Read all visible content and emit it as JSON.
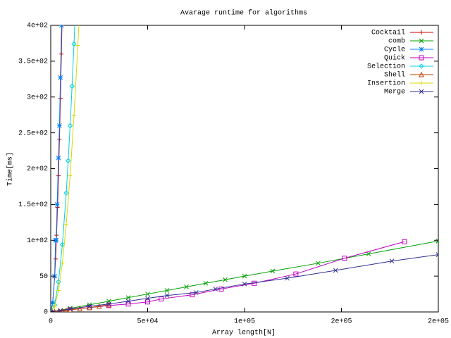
{
  "chart_data": {
    "type": "line",
    "title": "Avarage runtime for algorithms",
    "x_label": "Array length[N]",
    "y_label": "Time[ms]",
    "xlim": [
      0,
      200000
    ],
    "ylim": [
      0,
      400
    ],
    "xticks": [
      0,
      {
        "value": 50000,
        "label": "5e+04"
      },
      {
        "value": 100000,
        "label": "1e+05"
      },
      {
        "value": 150000,
        "label": "2e+05"
      },
      {
        "value": 200000,
        "label": "2e+05"
      }
    ],
    "yticks": [
      0,
      50,
      {
        "value": 100,
        "label": "1e+02"
      },
      {
        "value": 150,
        "label": "1.5e+02"
      },
      {
        "value": 200,
        "label": "2e+02"
      },
      {
        "value": 250,
        "label": "2.5e+02"
      },
      {
        "value": 300,
        "label": "3e+02"
      },
      {
        "value": 350,
        "label": "3.5e+02"
      },
      {
        "value": 400,
        "label": "4e+02"
      }
    ],
    "legend": "top-right",
    "series": [
      {
        "name": "Cocktail",
        "color": "#cc0000",
        "x": [
          0,
          1000,
          2000,
          2500,
          3000,
          3500,
          4000,
          4500,
          5000,
          5500,
          6000
        ],
        "values": [
          0,
          12,
          48,
          74,
          107,
          146,
          190,
          241,
          298,
          360,
          428
        ]
      },
      {
        "name": "comb",
        "color": "#00a000",
        "x": [
          0,
          10000,
          20000,
          30000,
          40000,
          50000,
          60000,
          70000,
          80000,
          90000,
          100000,
          114500,
          138000,
          164000,
          200000
        ],
        "values": [
          0,
          5,
          10,
          15,
          20,
          25,
          30,
          35,
          40,
          45,
          50,
          57,
          68,
          81,
          99
        ]
      },
      {
        "name": "Cycle",
        "color": "#0080ff",
        "x": [
          0,
          1000,
          2000,
          2500,
          2800,
          3300,
          4000,
          4500,
          5000,
          5600
        ],
        "values": [
          0,
          13,
          50,
          100,
          100,
          150,
          215,
          260,
          327,
          400
        ]
      },
      {
        "name": "Quick",
        "color": "#c000c0",
        "x": [
          0,
          10000,
          20000,
          30000,
          40000,
          50000,
          57000,
          73000,
          88000,
          105000,
          126500,
          151600,
          182500
        ],
        "values": [
          0,
          3,
          6,
          9,
          11,
          14,
          18,
          24,
          32,
          40,
          53,
          75,
          98
        ]
      },
      {
        "name": "Selection",
        "color": "#00d0e0",
        "x": [
          0,
          2000,
          4000,
          6000,
          8000,
          9000,
          10000,
          11000,
          12000,
          13000
        ],
        "values": [
          0,
          10,
          42,
          94,
          166,
          211,
          260,
          315,
          374,
          439
        ]
      },
      {
        "name": "Shell",
        "color": "#c04000",
        "x": [
          0,
          2000,
          4000,
          6000,
          8000,
          10000,
          15000,
          20000,
          25000,
          30000
        ],
        "values": [
          0,
          0.5,
          1,
          1.5,
          2,
          3,
          4.5,
          6,
          8,
          10
        ]
      },
      {
        "name": "Insertion",
        "color": "#d8d800",
        "x": [
          0,
          2000,
          4000,
          6000,
          8000,
          10000,
          12000,
          14000,
          15000
        ],
        "values": [
          0,
          8,
          30,
          68,
          122,
          190,
          274,
          372,
          428
        ]
      },
      {
        "name": "Merge",
        "color": "#303090",
        "x": [
          0,
          5000,
          10000,
          20000,
          30000,
          40000,
          50000,
          60000,
          75000,
          85000,
          100000,
          122000,
          147000,
          176000,
          200000
        ],
        "values": [
          0,
          2,
          4,
          8,
          11,
          15,
          19,
          23,
          27,
          32,
          39,
          47,
          58,
          71,
          80
        ]
      }
    ]
  }
}
